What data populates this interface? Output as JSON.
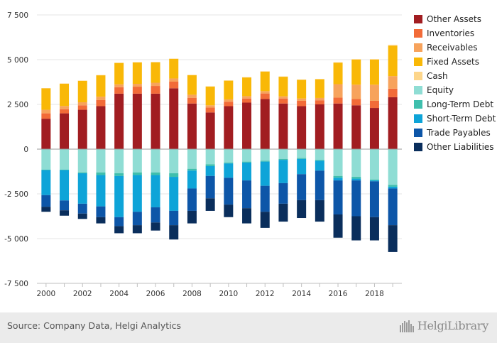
{
  "chart_data": {
    "type": "bar",
    "stacked": true,
    "categories": [
      "2000",
      "2001",
      "2002",
      "2003",
      "2004",
      "2005",
      "2006",
      "2007",
      "2008",
      "2009",
      "2010",
      "2011",
      "2012",
      "2013",
      "2014",
      "2015",
      "2016",
      "2017",
      "2018",
      "2019"
    ],
    "x_tick_labels": [
      "2000",
      "2002",
      "2004",
      "2006",
      "2008",
      "2010",
      "2012",
      "2014",
      "2016",
      "2018"
    ],
    "y_tick_labels": [
      "7 500",
      "5 000",
      "2 500",
      "0",
      "-2 500",
      "-5 000",
      "-7 500"
    ],
    "y_ticks": [
      7500,
      5000,
      2500,
      0,
      -2500,
      -5000,
      -7500
    ],
    "ylim": [
      -7500,
      7500
    ],
    "grid": "horizontal",
    "legend_position": "right",
    "series": [
      {
        "name": "Other Assets",
        "color": "#a11d21",
        "values": [
          1700,
          2000,
          2200,
          2400,
          3100,
          3100,
          3100,
          3400,
          2550,
          2050,
          2400,
          2600,
          2800,
          2550,
          2400,
          2500,
          2550,
          2450,
          2300,
          2900
        ]
      },
      {
        "name": "Inventories",
        "color": "#f26b38",
        "values": [
          300,
          230,
          250,
          340,
          360,
          390,
          430,
          370,
          320,
          270,
          250,
          230,
          310,
          280,
          300,
          230,
          330,
          350,
          400,
          480
        ]
      },
      {
        "name": "Receivables",
        "color": "#f7a35c",
        "values": [
          200,
          180,
          170,
          190,
          160,
          160,
          180,
          180,
          170,
          130,
          130,
          130,
          130,
          120,
          130,
          130,
          750,
          800,
          900,
          700
        ]
      },
      {
        "name": "Fixed Assets",
        "color": "#f9b807",
        "values": [
          1200,
          1250,
          1200,
          1200,
          1200,
          1200,
          1150,
          1100,
          1100,
          1050,
          1050,
          1050,
          1100,
          1100,
          1050,
          1050,
          1200,
          1400,
          1400,
          1700
        ]
      },
      {
        "name": "Cash",
        "color": "#fdd68b",
        "values": [
          10,
          10,
          10,
          10,
          10,
          10,
          10,
          10,
          10,
          10,
          10,
          10,
          10,
          10,
          10,
          10,
          30,
          30,
          30,
          50
        ]
      },
      {
        "name": "Equity",
        "color": "#8fddd4",
        "values": [
          -1150,
          -1150,
          -1300,
          -1300,
          -1350,
          -1300,
          -1300,
          -1350,
          -1100,
          -850,
          -750,
          -700,
          -650,
          -550,
          -500,
          -600,
          -1500,
          -1550,
          -1700,
          -2000
        ]
      },
      {
        "name": "Long-Term Debt",
        "color": "#3fbfad",
        "values": [
          -20,
          -20,
          -50,
          -150,
          -150,
          -150,
          -150,
          -200,
          -100,
          -100,
          -50,
          -50,
          -50,
          -50,
          -50,
          -50,
          -100,
          -100,
          -50,
          -100
        ]
      },
      {
        "name": "Short-Term Debt",
        "color": "#0ea4d8",
        "values": [
          -1400,
          -1700,
          -1700,
          -1750,
          -2300,
          -2050,
          -1800,
          -1900,
          -1000,
          -550,
          -800,
          -1000,
          -1350,
          -1300,
          -850,
          -550,
          -150,
          -100,
          -50,
          -100
        ]
      },
      {
        "name": "Trade Payables",
        "color": "#0d56a8",
        "values": [
          -650,
          -550,
          -550,
          -600,
          -500,
          -750,
          -850,
          -800,
          -1250,
          -1250,
          -1500,
          -1550,
          -1450,
          -1150,
          -1450,
          -1650,
          -1900,
          -2000,
          -2000,
          -2050
        ]
      },
      {
        "name": "Other Liabilities",
        "color": "#0a2e5c",
        "values": [
          -280,
          -300,
          -300,
          -350,
          -400,
          -450,
          -450,
          -800,
          -700,
          -700,
          -700,
          -850,
          -900,
          -1000,
          -1000,
          -1200,
          -1300,
          -1350,
          -1300,
          -1500
        ]
      }
    ]
  },
  "footer": {
    "source": "Source: Company Data, Helgi Analytics",
    "brand": "HelgiLibrary"
  }
}
